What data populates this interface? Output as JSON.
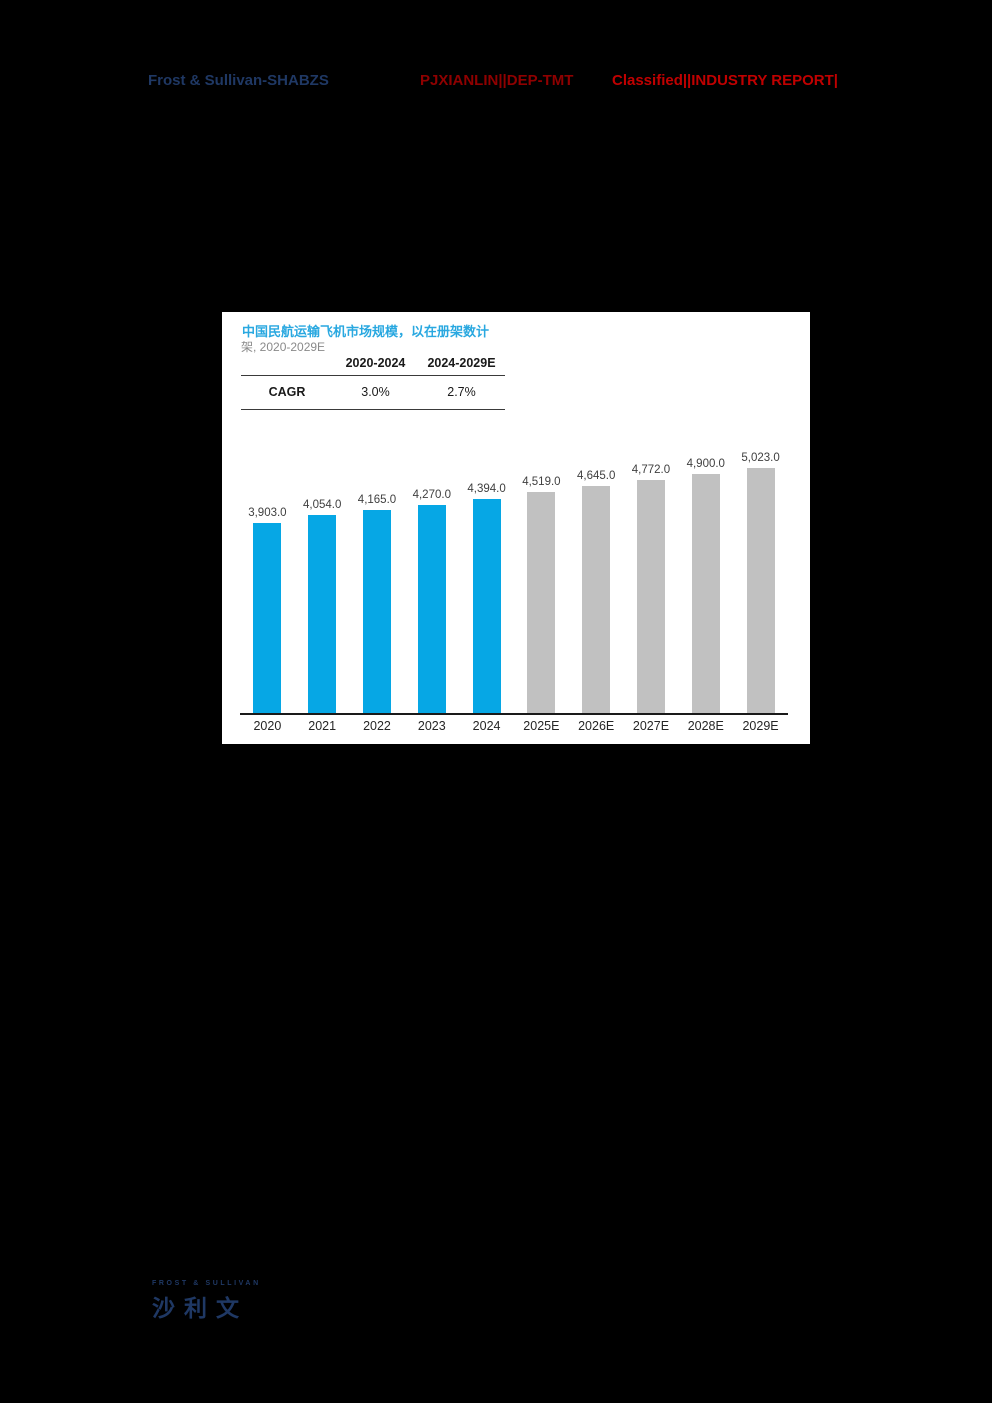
{
  "header": {
    "left": "Frost & Sullivan-SHABZS",
    "middle": "PJXIANLIN||DEP-TMT",
    "right": "Classified||INDUSTRY REPORT|"
  },
  "card": {
    "title": "中国民航运输飞机市场规模，以在册架数计",
    "subtitle": "架, 2020-2029E",
    "cagr_table": {
      "row_label": "CAGR",
      "col1_header": "2020-2024",
      "col2_header": "2024-2029E",
      "col1_value": "3.0%",
      "col2_value": "2.7%"
    }
  },
  "chart_data": {
    "type": "bar",
    "title": "中国民航运输飞机市场规模，以在册架数计",
    "subtitle": "架, 2020-2029E",
    "unit": "架",
    "categories": [
      "2020",
      "2021",
      "2022",
      "2023",
      "2024",
      "2025E",
      "2026E",
      "2027E",
      "2028E",
      "2029E"
    ],
    "values": [
      3903.0,
      4054.0,
      4165.0,
      4270.0,
      4394.0,
      4519.0,
      4645.0,
      4772.0,
      4900.0,
      5023.0
    ],
    "value_labels": [
      "3,903.0",
      "4,054.0",
      "4,165.0",
      "4,270.0",
      "4,394.0",
      "4,519.0",
      "4,645.0",
      "4,772.0",
      "4,900.0",
      "5,023.0"
    ],
    "actual_count": 5,
    "series_colors": {
      "actual": "#06A7E5",
      "estimate": "#C1C1C1"
    },
    "ylim": [
      0,
      5300
    ],
    "grid": "off",
    "legend": "none",
    "cagr_2020_2024": "3.0%",
    "cagr_2024_2029E": "2.7%"
  },
  "footer": {
    "logo_top": "FROST & SULLIVAN",
    "logo_bottom": "沙利文"
  },
  "colors": {
    "page_background": "#000000",
    "card_background": "#FFFFFF",
    "title_accent_blue": "#29A8E0",
    "bar_actual_blue": "#06A7E5",
    "bar_estimate_gray": "#C1C1C1",
    "header_navy": "#1F3864",
    "header_dark_red": "#8F0000",
    "header_red": "#C00000",
    "logo_navy": "#1F3864"
  }
}
